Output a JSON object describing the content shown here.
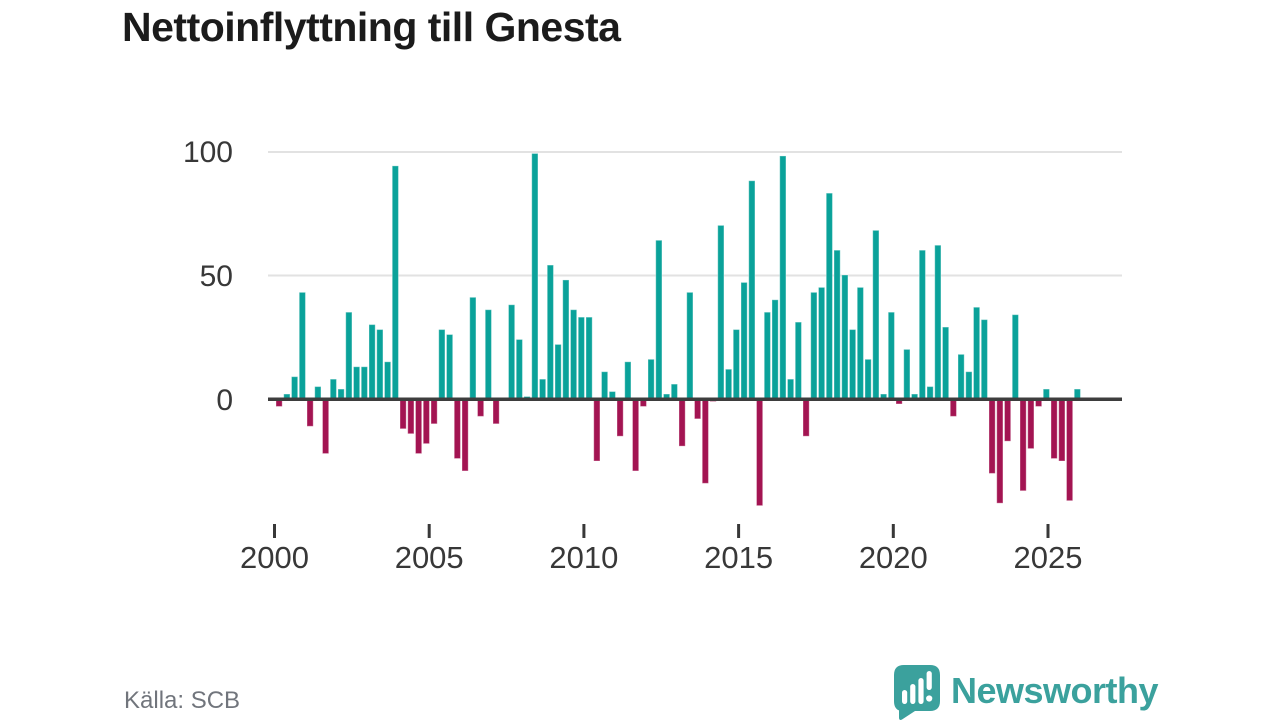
{
  "title": "Nettoinflyttning till Gnesta",
  "source": {
    "label": "Källa: SCB"
  },
  "branding": {
    "logo_text": "Newsworthy",
    "logo_icon": "speech-bubble-bar-chart",
    "logo_color": "#3ba19d"
  },
  "colors": {
    "positive": "#0aa29a",
    "negative": "#a31452",
    "axis": "#3d3d3d",
    "gridline": "#e2e2e2",
    "label_text": "#383838",
    "muted_text": "#71757c"
  },
  "chart_data": {
    "type": "bar",
    "title": "Nettoinflyttning till Gnesta",
    "xlabel": "",
    "ylabel": "",
    "x_unit": "quarter",
    "ylim": [
      -50,
      105
    ],
    "grid": "horizontal",
    "legend": "none",
    "y_tick_labels": [
      "100",
      "50",
      "0"
    ],
    "y_tick_values": [
      100,
      50,
      0
    ],
    "x_tick_labels": [
      "2000",
      "2005",
      "2010",
      "2015",
      "2020",
      "2025"
    ],
    "series": [
      {
        "year": 2000,
        "values": [
          -3,
          2,
          9,
          43
        ]
      },
      {
        "year": 2001,
        "values": [
          -11,
          5,
          -22,
          8
        ]
      },
      {
        "year": 2002,
        "values": [
          4,
          35,
          13,
          13
        ]
      },
      {
        "year": 2003,
        "values": [
          30,
          28,
          15,
          94
        ]
      },
      {
        "year": 2004,
        "values": [
          -12,
          -14,
          -22,
          -18
        ]
      },
      {
        "year": 2005,
        "values": [
          -10,
          28,
          26,
          -24
        ]
      },
      {
        "year": 2006,
        "values": [
          -29,
          41,
          -7,
          36
        ]
      },
      {
        "year": 2007,
        "values": [
          -10,
          0,
          38,
          24
        ]
      },
      {
        "year": 2008,
        "values": [
          1,
          99,
          8,
          54
        ]
      },
      {
        "year": 2009,
        "values": [
          22,
          48,
          36,
          33
        ]
      },
      {
        "year": 2010,
        "values": [
          33,
          -25,
          11,
          3
        ]
      },
      {
        "year": 2011,
        "values": [
          -15,
          15,
          -29,
          -3
        ]
      },
      {
        "year": 2012,
        "values": [
          16,
          64,
          2,
          6
        ]
      },
      {
        "year": 2013,
        "values": [
          -19,
          43,
          -8,
          -34
        ]
      },
      {
        "year": 2014,
        "values": [
          -1,
          70,
          12,
          28
        ]
      },
      {
        "year": 2015,
        "values": [
          47,
          88,
          -43,
          35
        ]
      },
      {
        "year": 2016,
        "values": [
          40,
          98,
          8,
          31
        ]
      },
      {
        "year": 2017,
        "values": [
          -15,
          43,
          45,
          83
        ]
      },
      {
        "year": 2018,
        "values": [
          60,
          50,
          28,
          45
        ]
      },
      {
        "year": 2019,
        "values": [
          16,
          68,
          2,
          35
        ]
      },
      {
        "year": 2020,
        "values": [
          -2,
          20,
          2,
          60
        ]
      },
      {
        "year": 2021,
        "values": [
          5,
          62,
          29,
          -7
        ]
      },
      {
        "year": 2022,
        "values": [
          18,
          11,
          37,
          32
        ]
      },
      {
        "year": 2023,
        "values": [
          -30,
          -42,
          -17,
          34
        ]
      },
      {
        "year": 2024,
        "values": [
          -37,
          -20,
          -3,
          4
        ]
      },
      {
        "year": 2025,
        "values": [
          -24,
          -25,
          -41,
          4
        ]
      }
    ]
  }
}
